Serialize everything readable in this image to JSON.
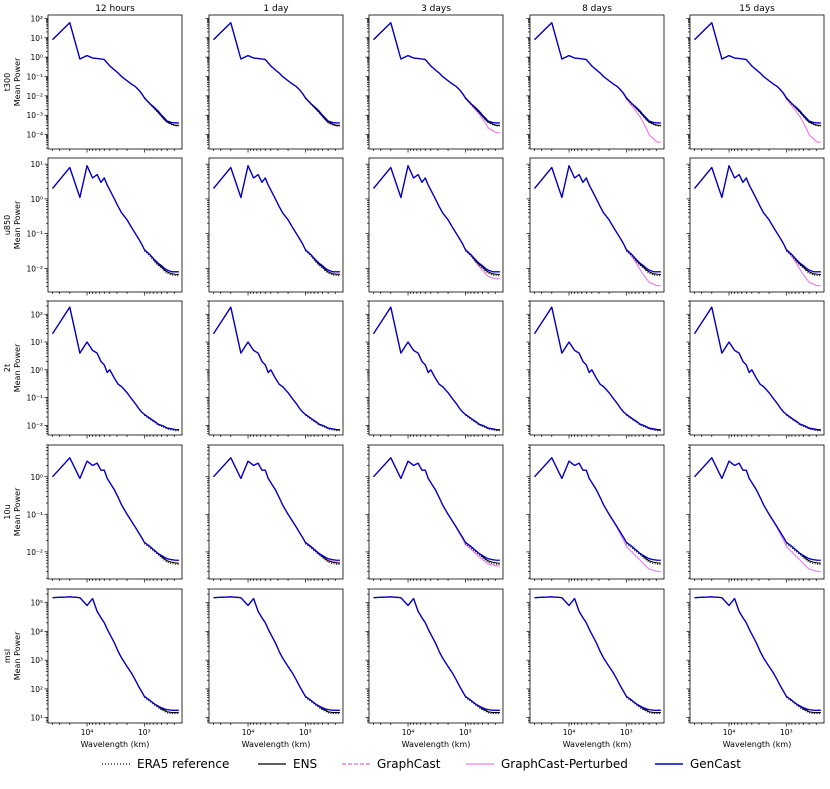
{
  "chart_data": {
    "type": "line",
    "title": "",
    "columns": [
      "12 hours",
      "1 day",
      "3 days",
      "8 days",
      "15 days"
    ],
    "rows": [
      {
        "variable": "t300",
        "ylabel": "Mean Power",
        "yticks": [
          {
            "value": 100,
            "label": "10²"
          },
          {
            "value": 10,
            "label": "10¹"
          },
          {
            "value": 1,
            "label": "10⁰"
          },
          {
            "value": 0.1,
            "label": "10⁻¹"
          },
          {
            "value": 0.01,
            "label": "10⁻²"
          },
          {
            "value": 0.001,
            "label": "10⁻³"
          },
          {
            "value": 0.0001,
            "label": "10⁻⁴"
          }
        ],
        "ylim": [
          1.8e-05,
          150
        ]
      },
      {
        "variable": "u850",
        "ylabel": "Mean Power",
        "yticks": [
          {
            "value": 10,
            "label": "10¹"
          },
          {
            "value": 1,
            "label": "10⁰"
          },
          {
            "value": 0.1,
            "label": "10⁻¹"
          },
          {
            "value": 0.01,
            "label": "10⁻²"
          }
        ],
        "ylim": [
          0.0021,
          15
        ]
      },
      {
        "variable": "2t",
        "ylabel": "Mean Power",
        "yticks": [
          {
            "value": 100,
            "label": "10²"
          },
          {
            "value": 10,
            "label": "10¹"
          },
          {
            "value": 1,
            "label": "10⁰"
          },
          {
            "value": 0.1,
            "label": "10⁻¹"
          },
          {
            "value": 0.01,
            "label": "10⁻²"
          }
        ],
        "ylim": [
          0.0045,
          300
        ]
      },
      {
        "variable": "10u",
        "ylabel": "Mean Power",
        "yticks": [
          {
            "value": 1,
            "label": "10⁰"
          },
          {
            "value": 0.1,
            "label": "10⁻¹"
          },
          {
            "value": 0.01,
            "label": "10⁻²"
          }
        ],
        "ylim": [
          0.0019,
          7
        ]
      },
      {
        "variable": "msl",
        "ylabel": "Mean Power",
        "yticks": [
          {
            "value": 100000,
            "label": "10⁵"
          },
          {
            "value": 10000,
            "label": "10⁴"
          },
          {
            "value": 1000,
            "label": "10³"
          },
          {
            "value": 100,
            "label": "10²"
          },
          {
            "value": 10,
            "label": "10¹"
          }
        ],
        "ylim": [
          6.5,
          300000
        ]
      }
    ],
    "xlabel": "Wavelength (km)",
    "xlim": [
      48000,
      220
    ],
    "xscale": "log",
    "xticks": [
      {
        "value": 10000,
        "label": "10⁴"
      },
      {
        "value": 1000,
        "label": "10³"
      }
    ],
    "x": [
      40000,
      20000,
      13333,
      10000,
      8000,
      6667,
      5714,
      5000,
      4444,
      4000,
      3333,
      2857,
      2500,
      2000,
      1667,
      1429,
      1250,
      1111,
      1000,
      800,
      667,
      571,
      500,
      444,
      400,
      333,
      286,
      250
    ],
    "legend": [
      {
        "name": "ERA5 reference",
        "color": "#000000",
        "dash": "dotted"
      },
      {
        "name": "ENS",
        "color": "#000000",
        "dash": "solid"
      },
      {
        "name": "GraphCast",
        "color": "#ee66cc",
        "dash": "dashed"
      },
      {
        "name": "GraphCast-Perturbed",
        "color": "#ee82ee",
        "dash": "solid"
      },
      {
        "name": "GenCast",
        "color": "#0000cc",
        "dash": "solid"
      }
    ],
    "legend_position": "bottom",
    "series": {
      "GenCast": [
        [
          8,
          60,
          0.8,
          1.2,
          0.9,
          0.85,
          0.8,
          0.75,
          0.5,
          0.35,
          0.22,
          0.15,
          0.1,
          0.06,
          0.04,
          0.03,
          0.02,
          0.013,
          0.008,
          0.004,
          0.0025,
          0.0016,
          0.001,
          0.0007,
          0.0005,
          0.00042,
          0.0004,
          0.0004
        ],
        [
          2,
          8,
          1.1,
          9,
          4,
          5,
          3,
          4,
          2.5,
          1.8,
          1,
          0.6,
          0.4,
          0.25,
          0.15,
          0.1,
          0.07,
          0.05,
          0.035,
          0.025,
          0.018,
          0.014,
          0.012,
          0.01,
          0.009,
          0.008,
          0.008,
          0.008
        ],
        [
          20,
          180,
          4,
          10,
          5,
          4,
          2,
          1.5,
          0.8,
          1,
          0.5,
          0.3,
          0.25,
          0.15,
          0.09,
          0.06,
          0.04,
          0.03,
          0.025,
          0.018,
          0.014,
          0.011,
          0.01,
          0.009,
          0.008,
          0.0075,
          0.007,
          0.007
        ],
        [
          1,
          3.2,
          0.9,
          2.6,
          2,
          2.3,
          1.5,
          1.5,
          0.9,
          0.7,
          0.45,
          0.28,
          0.18,
          0.1,
          0.065,
          0.045,
          0.032,
          0.024,
          0.018,
          0.014,
          0.011,
          0.009,
          0.008,
          0.0072,
          0.0066,
          0.0062,
          0.006,
          0.006
        ],
        [
          150000,
          160000,
          150000,
          80000,
          140000,
          50000,
          30000,
          20000,
          12000,
          8000,
          4000,
          2000,
          1200,
          600,
          350,
          200,
          120,
          80,
          55,
          40,
          30,
          25,
          22,
          20,
          19,
          18,
          18,
          18
        ]
      ],
      "ENS": [
        [
          8,
          60,
          0.8,
          1.2,
          0.9,
          0.85,
          0.8,
          0.75,
          0.5,
          0.35,
          0.22,
          0.15,
          0.1,
          0.06,
          0.04,
          0.03,
          0.02,
          0.013,
          0.008,
          0.004,
          0.0023,
          0.0014,
          0.0009,
          0.0006,
          0.00045,
          0.00035,
          0.0003,
          0.0003
        ],
        [
          2,
          8,
          1.1,
          9,
          4,
          5,
          3,
          4,
          2.5,
          1.8,
          1,
          0.6,
          0.4,
          0.25,
          0.15,
          0.1,
          0.07,
          0.05,
          0.035,
          0.025,
          0.017,
          0.013,
          0.011,
          0.009,
          0.008,
          0.007,
          0.0068,
          0.0067
        ],
        [
          20,
          180,
          4,
          10,
          5,
          4,
          2,
          1.5,
          0.8,
          1,
          0.5,
          0.3,
          0.25,
          0.15,
          0.09,
          0.06,
          0.04,
          0.03,
          0.025,
          0.018,
          0.014,
          0.011,
          0.01,
          0.009,
          0.008,
          0.0075,
          0.007,
          0.007
        ],
        [
          1,
          3.2,
          0.9,
          2.6,
          2,
          2.3,
          1.5,
          1.5,
          0.9,
          0.7,
          0.45,
          0.28,
          0.18,
          0.1,
          0.065,
          0.045,
          0.032,
          0.024,
          0.018,
          0.014,
          0.011,
          0.009,
          0.0075,
          0.0065,
          0.0058,
          0.0053,
          0.0051,
          0.005
        ],
        [
          150000,
          160000,
          150000,
          80000,
          140000,
          50000,
          30000,
          20000,
          12000,
          8000,
          4000,
          2000,
          1200,
          600,
          350,
          200,
          120,
          80,
          55,
          40,
          30,
          24,
          20,
          18,
          16,
          15,
          15,
          15
        ]
      ],
      "GraphCast-Perturbed": [
        [
          8,
          60,
          0.8,
          1.2,
          0.9,
          0.85,
          0.8,
          0.75,
          0.5,
          0.35,
          0.22,
          0.15,
          0.1,
          0.06,
          0.04,
          0.03,
          0.02,
          0.012,
          0.007,
          0.003,
          0.0015,
          0.0008,
          0.0004,
          0.0002,
          0.0001,
          6e-05,
          4e-05,
          4e-05
        ],
        [
          2,
          8,
          1.1,
          9,
          4,
          5,
          3,
          4,
          2.5,
          1.8,
          1,
          0.6,
          0.4,
          0.25,
          0.15,
          0.1,
          0.07,
          0.05,
          0.033,
          0.022,
          0.014,
          0.009,
          0.0065,
          0.005,
          0.004,
          0.0035,
          0.0032,
          0.0032
        ],
        [
          20,
          180,
          4,
          10,
          5,
          4,
          2,
          1.5,
          0.8,
          1,
          0.5,
          0.3,
          0.25,
          0.15,
          0.09,
          0.06,
          0.04,
          0.03,
          0.025,
          0.018,
          0.014,
          0.011,
          0.0095,
          0.0085,
          0.0075,
          0.007,
          0.0065,
          0.0065
        ],
        [
          1,
          3.2,
          0.9,
          2.6,
          2,
          2.3,
          1.5,
          1.5,
          0.9,
          0.7,
          0.45,
          0.28,
          0.18,
          0.1,
          0.062,
          0.042,
          0.028,
          0.02,
          0.014,
          0.01,
          0.0075,
          0.006,
          0.0048,
          0.004,
          0.0035,
          0.0032,
          0.003,
          0.003
        ],
        [
          150000,
          160000,
          150000,
          80000,
          140000,
          50000,
          30000,
          20000,
          12000,
          8000,
          4000,
          2000,
          1200,
          600,
          350,
          200,
          120,
          80,
          55,
          40,
          30,
          25,
          22,
          20,
          19,
          18,
          18,
          18
        ]
      ]
    }
  }
}
